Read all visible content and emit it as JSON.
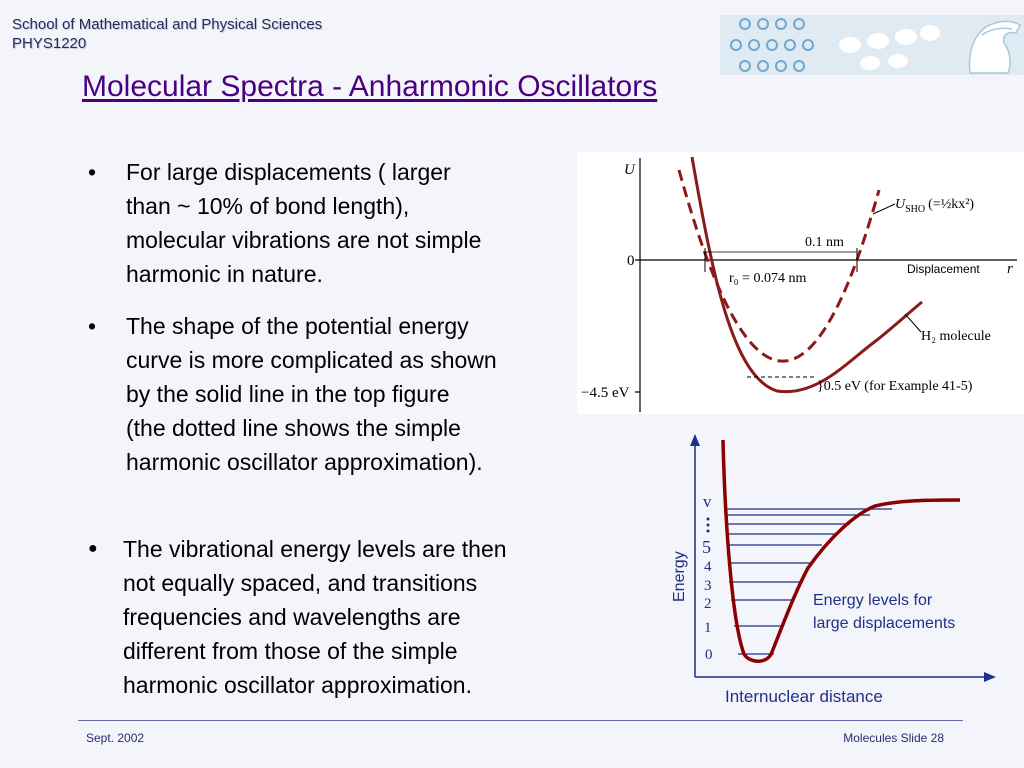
{
  "header": {
    "school_line1": "School of Mathematical and Physical Sciences",
    "school_line2": "PHYS1220"
  },
  "title": "Molecular Spectra - Anharmonic Oscillators",
  "bullets": [
    {
      "symbol": "•",
      "lines": [
        "For large displacements ( larger",
        "than ~ 10% of bond length),",
        "molecular vibrations are not simple",
        "harmonic in nature."
      ]
    },
    {
      "symbol": "•",
      "lines": [
        "The shape of the potential energy",
        "curve is more complicated as shown",
        "by the solid line in the top figure",
        "(the dotted line shows the simple",
        "harmonic oscillator approximation)."
      ]
    },
    {
      "symbol": "●",
      "lines": [
        "The vibrational energy levels are then",
        "not equally spaced, and transitions",
        "frequencies and wavelengths are",
        "different from those of the simple",
        "harmonic oscillator approximation."
      ]
    }
  ],
  "figure_top": {
    "y_axis_label": "U",
    "zero_label": "0",
    "depth_label": "−4.5 eV",
    "x_axis_label": "r",
    "displacement_label": "Displacement",
    "usho_label": "U",
    "usho_sub": "SHO",
    "usho_formula": "(=½kx²)",
    "width_label": "0.1 nm",
    "r0_label": "r₀ = 0.074 nm",
    "h2_label": "H₂ molecule",
    "gap_label": "}0.5 eV (for Example 41-5)",
    "colors": {
      "curve": "#8b1a1a",
      "axis": "#000000"
    }
  },
  "figure_bottom": {
    "y_axis_label": "Energy",
    "x_axis_label": "Internuclear distance",
    "level_labels": [
      "0",
      "1",
      "2",
      "3",
      "4",
      "5"
    ],
    "v_label": "v",
    "caption_line1": "Energy levels for",
    "caption_line2": "large displacements",
    "colors": {
      "curve": "#8b0000",
      "levels": "#1f2f8a",
      "text": "#1f2f8a"
    }
  },
  "footer": {
    "left": "Sept. 2002",
    "right": "Molecules Slide 28"
  },
  "logo": {
    "name": "university-logo"
  }
}
